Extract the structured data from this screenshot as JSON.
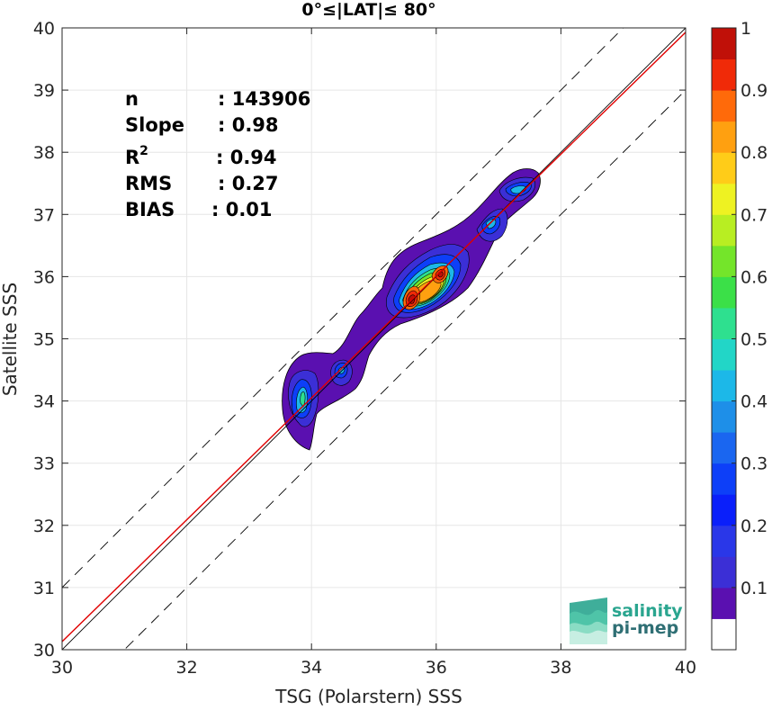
{
  "chart_data": {
    "type": "heatmap",
    "title": "0°≤|LAT|≤ 80°",
    "xlabel": "TSG (Polarstern) SSS",
    "ylabel": "Satellite SSS",
    "xlim": [
      30,
      40
    ],
    "ylim": [
      30,
      40
    ],
    "xticks": [
      "30",
      "32",
      "34",
      "36",
      "38",
      "40"
    ],
    "yticks": [
      "30",
      "31",
      "32",
      "33",
      "34",
      "35",
      "36",
      "37",
      "38",
      "39",
      "40"
    ],
    "grid": true,
    "stats": [
      {
        "label": "n",
        "value": ": 143906"
      },
      {
        "label": "Slope",
        "value": ": 0.98"
      },
      {
        "label": "R",
        "sup": "2",
        "value": ": 0.94"
      },
      {
        "label": "RMS",
        "value": ": 0.27"
      },
      {
        "label": "BIAS",
        "value": ": 0.01"
      }
    ],
    "colorbar": {
      "ticks": [
        "0.1",
        "0.2",
        "0.3",
        "0.4",
        "0.5",
        "0.6",
        "0.7",
        "0.8",
        "0.9",
        "1"
      ],
      "levels": 20,
      "colors": [
        "#ffffff",
        "#5a10b0",
        "#3b2fd6",
        "#2a37e8",
        "#0a1ffa",
        "#0d3ff8",
        "#1a66f0",
        "#1e8fe8",
        "#1cb8e8",
        "#22d6c7",
        "#2ee08f",
        "#3be048",
        "#74e52a",
        "#b8ee22",
        "#eef222",
        "#ffcc18",
        "#ffa010",
        "#ff6a0a",
        "#f02a08",
        "#c01008",
        "#8c0606"
      ]
    },
    "reference_lines": [
      {
        "name": "1:1",
        "style": "solid",
        "color": "#000000",
        "offset": 0
      },
      {
        "name": "+1",
        "style": "dashed",
        "color": "#000000",
        "offset": 1
      },
      {
        "name": "-1",
        "style": "dashed",
        "color": "#000000",
        "offset": -1
      },
      {
        "name": "fit",
        "style": "solid",
        "color": "#e00000",
        "slope": 0.98,
        "intercept": 0.73
      }
    ],
    "density_peaks": [
      {
        "x": 35.65,
        "y": 35.65,
        "density": 0.97
      },
      {
        "x": 36.1,
        "y": 36.05,
        "density": 0.93
      },
      {
        "x": 33.85,
        "y": 34.1,
        "density": 0.42
      },
      {
        "x": 34.5,
        "y": 34.5,
        "density": 0.32
      },
      {
        "x": 36.9,
        "y": 36.9,
        "density": 0.37
      },
      {
        "x": 37.35,
        "y": 37.4,
        "density": 0.33
      }
    ]
  },
  "logo": {
    "line1": "salinity",
    "line2": "pi-mep"
  }
}
